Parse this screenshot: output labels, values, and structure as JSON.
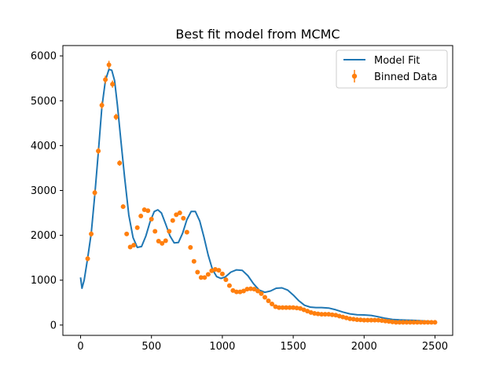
{
  "chart_data": {
    "type": "line",
    "title": "Best fit model from MCMC",
    "xlabel": "",
    "ylabel": "",
    "xlim": [
      -125,
      2625
    ],
    "ylim": [
      -230,
      6230
    ],
    "xticks": [
      0,
      500,
      1000,
      1500,
      2000,
      2500
    ],
    "yticks": [
      0,
      1000,
      2000,
      3000,
      4000,
      5000,
      6000
    ],
    "grid": false,
    "legend_position": "top-right",
    "colors": {
      "model": "#1f77b4",
      "data": "#ff7f0e"
    },
    "series": [
      {
        "name": "Model Fit",
        "kind": "line",
        "x": [
          0,
          10,
          25,
          50,
          75,
          100,
          125,
          150,
          175,
          200,
          220,
          240,
          260,
          285,
          310,
          340,
          370,
          400,
          430,
          460,
          490,
          520,
          545,
          570,
          600,
          630,
          660,
          690,
          720,
          750,
          780,
          810,
          840,
          870,
          900,
          930,
          960,
          990,
          1020,
          1060,
          1100,
          1140,
          1180,
          1220,
          1260,
          1300,
          1340,
          1380,
          1420,
          1460,
          1500,
          1540,
          1580,
          1620,
          1660,
          1700,
          1750,
          1800,
          1850,
          1900,
          1950,
          2000,
          2050,
          2100,
          2150,
          2200,
          2250,
          2300,
          2350,
          2400,
          2450,
          2500
        ],
        "y": [
          1060,
          820,
          1000,
          1500,
          2050,
          2900,
          3850,
          4850,
          5450,
          5700,
          5680,
          5450,
          4900,
          4100,
          3300,
          2450,
          1950,
          1730,
          1750,
          1980,
          2300,
          2530,
          2570,
          2500,
          2250,
          1990,
          1830,
          1840,
          2050,
          2350,
          2530,
          2530,
          2320,
          1960,
          1560,
          1240,
          1080,
          1040,
          1070,
          1180,
          1230,
          1220,
          1100,
          920,
          780,
          730,
          760,
          820,
          830,
          780,
          670,
          540,
          440,
          400,
          390,
          390,
          380,
          340,
          290,
          250,
          230,
          225,
          215,
          185,
          150,
          125,
          115,
          110,
          105,
          95,
          85,
          70
        ]
      },
      {
        "name": "Binned Data",
        "kind": "errorbar",
        "x": [
          50,
          75,
          100,
          125,
          150,
          175,
          200,
          225,
          250,
          275,
          300,
          325,
          350,
          375,
          400,
          425,
          450,
          475,
          500,
          525,
          550,
          575,
          600,
          625,
          650,
          675,
          700,
          725,
          750,
          775,
          800,
          825,
          850,
          875,
          900,
          925,
          950,
          975,
          1000,
          1025,
          1050,
          1075,
          1100,
          1125,
          1150,
          1175,
          1200,
          1225,
          1250,
          1275,
          1300,
          1325,
          1350,
          1375,
          1400,
          1425,
          1450,
          1475,
          1500,
          1525,
          1550,
          1575,
          1600,
          1625,
          1650,
          1675,
          1700,
          1725,
          1750,
          1775,
          1800,
          1825,
          1850,
          1875,
          1900,
          1925,
          1950,
          1975,
          2000,
          2025,
          2050,
          2075,
          2100,
          2125,
          2150,
          2175,
          2200,
          2225,
          2250,
          2275,
          2300,
          2325,
          2350,
          2375,
          2400,
          2425,
          2450,
          2475,
          2500
        ],
        "y": [
          1480,
          2030,
          2950,
          3880,
          4900,
          5470,
          5800,
          5370,
          4640,
          3610,
          2640,
          2030,
          1740,
          1780,
          2170,
          2430,
          2570,
          2550,
          2360,
          2090,
          1870,
          1820,
          1880,
          2090,
          2330,
          2460,
          2500,
          2380,
          2070,
          1730,
          1420,
          1180,
          1060,
          1060,
          1130,
          1210,
          1240,
          1220,
          1140,
          1010,
          880,
          770,
          740,
          740,
          760,
          800,
          810,
          800,
          760,
          700,
          620,
          540,
          470,
          410,
          390,
          390,
          390,
          390,
          390,
          380,
          370,
          340,
          310,
          280,
          260,
          250,
          240,
          240,
          240,
          230,
          220,
          200,
          180,
          160,
          140,
          130,
          120,
          115,
          110,
          110,
          110,
          110,
          110,
          100,
          90,
          80,
          70,
          60,
          60,
          60,
          60,
          60,
          60,
          60,
          60,
          60,
          60,
          60,
          60
        ],
        "err": [
          60,
          60,
          70,
          70,
          80,
          90,
          90,
          80,
          70,
          60,
          50,
          40,
          40,
          40,
          40,
          40,
          40,
          40,
          40,
          30,
          30,
          30,
          30,
          30,
          30,
          30,
          30,
          30,
          30,
          30,
          30,
          30,
          30,
          30,
          30,
          30,
          30,
          30,
          30,
          30,
          30,
          30,
          30,
          30,
          30,
          30,
          30,
          30,
          30,
          30,
          30,
          30,
          30,
          30,
          30,
          30,
          30,
          30,
          30,
          30,
          30,
          30,
          30,
          30,
          30,
          30,
          30,
          30,
          30,
          30,
          30,
          30,
          30,
          30,
          30,
          30,
          30,
          30,
          30,
          30,
          30,
          30,
          30,
          30,
          30,
          30,
          30,
          30,
          30,
          30,
          30,
          30,
          30,
          30,
          30,
          30,
          30,
          30,
          30
        ]
      }
    ]
  }
}
